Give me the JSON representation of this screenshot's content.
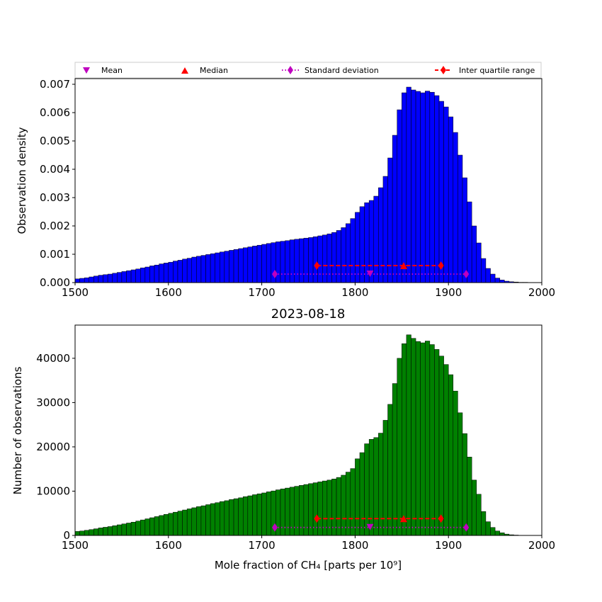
{
  "legend": {
    "entries": [
      {
        "label": "Mean",
        "marker": "triangle-down",
        "color": "#bf00bf"
      },
      {
        "label": "Median",
        "marker": "triangle-up",
        "color": "#ff0000"
      },
      {
        "label": "Standard deviation",
        "marker": "diamond",
        "color": "#bf00bf",
        "line": "dotted"
      },
      {
        "label": "Inter quartile range",
        "marker": "diamond",
        "color": "#ff0000",
        "line": "dashed"
      }
    ]
  },
  "stats": {
    "mean": 1816,
    "median": 1852,
    "std_low": 1714,
    "std_high": 1919,
    "iqr_low": 1759,
    "iqr_high": 1892
  },
  "chart_data": [
    {
      "type": "bar",
      "title": "",
      "xlabel": "",
      "ylabel": "Observation density",
      "xlim": [
        1500,
        2000
      ],
      "ylim": [
        0,
        0.0072
      ],
      "xticks": [
        "1500",
        "1600",
        "1700",
        "1800",
        "1900",
        "2000"
      ],
      "yticks": [
        "0.000",
        "0.001",
        "0.002",
        "0.003",
        "0.004",
        "0.005",
        "0.006",
        "0.007"
      ],
      "bar_color": "#0000ff",
      "bin_start": 1500,
      "bin_width": 5,
      "values": [
        0.00013,
        0.00015,
        0.00017,
        0.0002,
        0.00023,
        0.00026,
        0.00028,
        0.0003,
        0.00033,
        0.00036,
        0.00039,
        0.00042,
        0.00045,
        0.00048,
        0.00052,
        0.00055,
        0.00059,
        0.00062,
        0.00066,
        0.00069,
        0.00072,
        0.00076,
        0.00079,
        0.00083,
        0.00086,
        0.0009,
        0.00093,
        0.00096,
        0.00099,
        0.00102,
        0.00105,
        0.00108,
        0.00111,
        0.00114,
        0.00117,
        0.0012,
        0.00123,
        0.00126,
        0.00129,
        0.00132,
        0.00135,
        0.00138,
        0.00141,
        0.00144,
        0.00146,
        0.00148,
        0.00151,
        0.00153,
        0.00155,
        0.00157,
        0.00159,
        0.00162,
        0.00165,
        0.00168,
        0.00172,
        0.00177,
        0.00184,
        0.00194,
        0.00208,
        0.00226,
        0.00248,
        0.00268,
        0.00282,
        0.0029,
        0.00305,
        0.00335,
        0.00375,
        0.0044,
        0.0052,
        0.0061,
        0.0067,
        0.0069,
        0.0068,
        0.00675,
        0.0067,
        0.00676,
        0.00672,
        0.0066,
        0.0064,
        0.0062,
        0.00585,
        0.0053,
        0.0045,
        0.0037,
        0.00285,
        0.002,
        0.0014,
        0.00085,
        0.0005,
        0.0003,
        0.00016,
        9e-05,
        5e-05,
        3e-05,
        2e-05,
        1e-05,
        1e-05,
        0.0,
        0.0,
        0.0
      ],
      "stats_y": {
        "std_line": 0.0003,
        "iqr_line": 0.0006
      }
    },
    {
      "type": "bar",
      "title": "2023-08-18",
      "xlabel": "Mole fraction of CH₄ [parts per 10⁹]",
      "ylabel": "Number of observations",
      "xlim": [
        1500,
        2000
      ],
      "ylim": [
        0,
        47500
      ],
      "xticks": [
        "1500",
        "1600",
        "1700",
        "1800",
        "1900",
        "2000"
      ],
      "yticks": [
        "0",
        "10000",
        "20000",
        "30000",
        "40000"
      ],
      "bar_color": "#008000",
      "bin_start": 1500,
      "bin_width": 5,
      "values": [
        900,
        1000,
        1150,
        1320,
        1500,
        1700,
        1850,
        2000,
        2200,
        2400,
        2600,
        2800,
        3000,
        3250,
        3500,
        3750,
        4000,
        4250,
        4500,
        4750,
        5000,
        5250,
        5500,
        5750,
        6000,
        6250,
        6500,
        6700,
        6950,
        7200,
        7400,
        7650,
        7850,
        8100,
        8300,
        8500,
        8750,
        8950,
        9200,
        9400,
        9600,
        9850,
        10050,
        10300,
        10500,
        10700,
        10900,
        11100,
        11300,
        11500,
        11700,
        11900,
        12100,
        12300,
        12500,
        12750,
        13100,
        13600,
        14300,
        15100,
        17300,
        18700,
        20700,
        21700,
        22100,
        23100,
        26000,
        29600,
        34300,
        40000,
        43300,
        45300,
        44500,
        43800,
        43500,
        43900,
        43100,
        42000,
        40500,
        38600,
        36300,
        32600,
        27700,
        23000,
        17700,
        12500,
        9300,
        5400,
        3100,
        1800,
        1000,
        600,
        300,
        150,
        80,
        40,
        20,
        0,
        0,
        0
      ],
      "stats_y": {
        "std_line": 1800,
        "iqr_line": 3800
      }
    }
  ]
}
